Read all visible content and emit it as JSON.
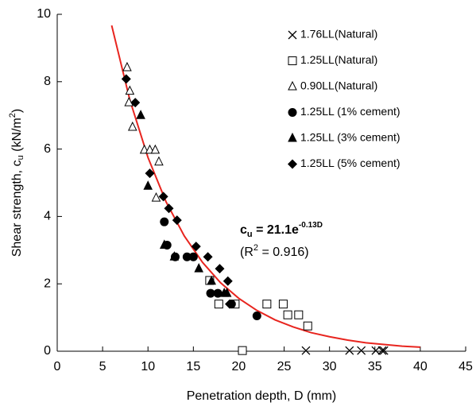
{
  "chart_data": {
    "type": "scatter",
    "x_label": "Penetration depth, D (mm)",
    "y_label": {
      "main": "Shear strength, c",
      "sub": "u",
      "mid": " (kN/m",
      "sup": "2",
      "end": ")"
    },
    "xlim": [
      0,
      45
    ],
    "xticks": [
      0,
      5,
      10,
      15,
      20,
      25,
      30,
      35,
      40,
      45
    ],
    "ylim": [
      0,
      10
    ],
    "yticks": [
      0,
      2,
      4,
      6,
      8,
      10
    ],
    "legend": "top-right",
    "series": [
      {
        "name": "1.76LL(Natural)",
        "marker": "x",
        "color": "#000000",
        "x": [
          27.4,
          32.2,
          33.5,
          35.1,
          35.8,
          36.0
        ],
        "values": [
          0.02,
          0.02,
          0.02,
          0.02,
          0.02,
          0.02
        ]
      },
      {
        "name": "1.25LL(Natural)",
        "marker": "square",
        "color": "#000000",
        "x": [
          16.8,
          17.8,
          19.6,
          23.1,
          24.9,
          25.4,
          26.6,
          27.6,
          20.4
        ],
        "values": [
          2.1,
          1.4,
          1.4,
          1.4,
          1.4,
          1.08,
          1.08,
          0.75,
          0.02
        ]
      },
      {
        "name": "0.90LL(Natural)",
        "marker": "triangle-open",
        "color": "#000000",
        "x": [
          7.7,
          8.0,
          7.9,
          8.3,
          9.6,
          10.2,
          10.8,
          11.2,
          10.9
        ],
        "values": [
          8.42,
          7.72,
          7.38,
          6.65,
          5.97,
          5.97,
          5.97,
          5.62,
          4.55
        ]
      },
      {
        "name": "1.25LL (1% cement)",
        "marker": "circle",
        "color": "#000000",
        "x": [
          11.8,
          12.1,
          13.0,
          14.3,
          15.0,
          16.9,
          17.7,
          19.2,
          22.0
        ],
        "values": [
          3.84,
          3.15,
          2.8,
          2.8,
          2.8,
          1.72,
          1.72,
          1.4,
          1.05
        ]
      },
      {
        "name": "1.25LL (3% cement)",
        "marker": "triangle",
        "color": "#000000",
        "x": [
          9.2,
          10.0,
          11.8,
          12.9,
          15.6,
          17.0,
          18.4,
          18.7
        ],
        "values": [
          7.0,
          4.9,
          3.15,
          2.8,
          2.45,
          2.08,
          1.72,
          1.72
        ]
      },
      {
        "name": "1.25LL (5% cement)",
        "marker": "diamond",
        "color": "#000000",
        "x": [
          7.6,
          8.6,
          10.2,
          11.7,
          12.3,
          13.2,
          15.3,
          16.6,
          17.9,
          18.8,
          19.0
        ],
        "values": [
          8.08,
          7.38,
          5.28,
          4.59,
          4.24,
          3.89,
          3.11,
          2.8,
          2.45,
          2.08,
          1.4
        ]
      }
    ],
    "fit": {
      "color": "#e8251f",
      "x": [
        6,
        8,
        10,
        12,
        14,
        16,
        18,
        20,
        22,
        24,
        26,
        28,
        30,
        32,
        34,
        36,
        38,
        40
      ],
      "values": [
        9.67,
        7.46,
        5.75,
        4.43,
        3.42,
        2.64,
        2.03,
        1.57,
        1.21,
        0.93,
        0.72,
        0.55,
        0.43,
        0.33,
        0.25,
        0.2,
        0.15,
        0.12
      ]
    },
    "annotations": {
      "equation": {
        "main": "c",
        "sub": "u",
        "mid": " = 21.1e",
        "sup": "-0.13D"
      },
      "r2": {
        "main": "(R",
        "sup": "2",
        "end": " = 0.916)"
      }
    }
  }
}
